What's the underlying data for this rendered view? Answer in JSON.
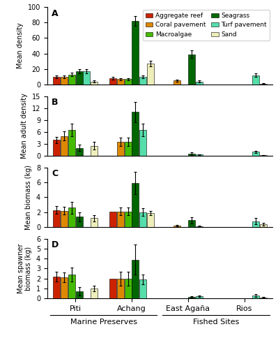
{
  "chart_data": [
    {
      "type": "bar",
      "title": "A",
      "ylabel": "Mean density",
      "categories": [
        "Piti",
        "Achang",
        "East Agaña",
        "Rios"
      ],
      "series": [
        {
          "name": "Aggregate reef",
          "color": "#cc2200",
          "values": [
            10,
            8,
            0,
            0
          ],
          "errors": [
            1.5,
            2,
            0,
            0
          ]
        },
        {
          "name": "Coral pavement",
          "color": "#dd8800",
          "values": [
            10,
            7,
            5,
            0
          ],
          "errors": [
            1.5,
            1.5,
            1,
            0
          ]
        },
        {
          "name": "Macroalgae",
          "color": "#44bb00",
          "values": [
            13,
            7,
            0,
            0
          ],
          "errors": [
            2,
            1.5,
            0,
            0
          ]
        },
        {
          "name": "Seagrass",
          "color": "#006600",
          "values": [
            17,
            82,
            39,
            0
          ],
          "errors": [
            3,
            6,
            5,
            0
          ]
        },
        {
          "name": "Turf pavement",
          "color": "#55ddaa",
          "values": [
            17,
            10,
            4,
            12
          ],
          "errors": [
            2.5,
            2,
            1,
            2
          ]
        },
        {
          "name": "Sand",
          "color": "#eeeebb",
          "values": [
            4,
            27,
            0,
            1
          ],
          "errors": [
            1,
            4,
            0,
            0.5
          ]
        }
      ],
      "ylim": [
        0,
        100
      ],
      "yticks": [
        0,
        20,
        40,
        60,
        80,
        100
      ],
      "legend": "upper right",
      "tick_labels": "y"
    },
    {
      "type": "bar",
      "title": "B",
      "ylabel": "Mean adult density",
      "categories": [
        "Piti",
        "Achang",
        "East Agaña",
        "Rios"
      ],
      "series": [
        {
          "color": "#cc2200",
          "values": [
            4,
            0,
            0,
            0
          ],
          "errors": [
            0.8,
            0,
            0,
            0
          ]
        },
        {
          "color": "#dd8800",
          "values": [
            5,
            3.5,
            0,
            0
          ],
          "errors": [
            1.2,
            1,
            0,
            0
          ]
        },
        {
          "color": "#44bb00",
          "values": [
            6.5,
            3.5,
            0,
            0
          ],
          "errors": [
            1.5,
            1,
            0,
            0
          ]
        },
        {
          "color": "#006600",
          "values": [
            2,
            11,
            0.5,
            0
          ],
          "errors": [
            0.8,
            2.5,
            0.3,
            0
          ]
        },
        {
          "color": "#55ddaa",
          "values": [
            0,
            6.5,
            0.3,
            1
          ],
          "errors": [
            0,
            1.5,
            0.1,
            0.3
          ]
        },
        {
          "color": "#eeeebb",
          "values": [
            2.5,
            0,
            0,
            0.1
          ],
          "errors": [
            1,
            0,
            0,
            0.05
          ]
        }
      ],
      "ylim": [
        0,
        15
      ],
      "yticks": [
        0,
        3,
        6,
        9,
        12,
        15
      ],
      "tick_labels": "y"
    },
    {
      "type": "bar",
      "title": "C",
      "ylabel": "Mean biomass (kg)",
      "categories": [
        "Piti",
        "Achang",
        "East Agaña",
        "Rios"
      ],
      "series": [
        {
          "color": "#cc2200",
          "values": [
            2.3,
            2.1,
            0,
            0
          ],
          "errors": [
            0.5,
            0,
            0,
            0
          ]
        },
        {
          "color": "#dd8800",
          "values": [
            2.2,
            2.1,
            0.2,
            0
          ],
          "errors": [
            0.5,
            0.5,
            0.1,
            0
          ]
        },
        {
          "color": "#44bb00",
          "values": [
            2.6,
            2.1,
            0,
            0
          ],
          "errors": [
            0.8,
            0.5,
            0,
            0
          ]
        },
        {
          "color": "#006600",
          "values": [
            1.4,
            5.9,
            0.9,
            0
          ],
          "errors": [
            0.6,
            1.5,
            0.4,
            0
          ]
        },
        {
          "color": "#55ddaa",
          "values": [
            0,
            2.0,
            0.15,
            0.8
          ],
          "errors": [
            0,
            0.5,
            0.05,
            0.4
          ]
        },
        {
          "color": "#eeeebb",
          "values": [
            1.2,
            1.9,
            0,
            0.4
          ],
          "errors": [
            0.4,
            0.3,
            0,
            0.2
          ]
        }
      ],
      "ylim": [
        0,
        8
      ],
      "yticks": [
        0,
        2,
        4,
        6,
        8
      ],
      "tick_labels": "y"
    },
    {
      "type": "bar",
      "title": "D",
      "ylabel": "Mean spawner\nbiomass (kg)",
      "categories": [
        "Piti",
        "Achang",
        "East Agaña",
        "Rios"
      ],
      "series": [
        {
          "color": "#cc2200",
          "values": [
            2.2,
            2.0,
            0,
            0
          ],
          "errors": [
            0.5,
            0,
            0,
            0
          ]
        },
        {
          "color": "#dd8800",
          "values": [
            2.1,
            2.0,
            0,
            0
          ],
          "errors": [
            0.5,
            0.7,
            0,
            0
          ]
        },
        {
          "color": "#44bb00",
          "values": [
            2.4,
            2.0,
            0,
            0
          ],
          "errors": [
            0.7,
            0.7,
            0,
            0
          ]
        },
        {
          "color": "#006600",
          "values": [
            0.7,
            3.9,
            0.15,
            0
          ],
          "errors": [
            0.4,
            1.5,
            0.1,
            0
          ]
        },
        {
          "color": "#55ddaa",
          "values": [
            0,
            1.9,
            0.2,
            0.3
          ],
          "errors": [
            0,
            0.5,
            0.08,
            0.15
          ]
        },
        {
          "color": "#eeeebb",
          "values": [
            1.0,
            0,
            0,
            0.1
          ],
          "errors": [
            0.3,
            0,
            0,
            0.05
          ]
        }
      ],
      "ylim": [
        0,
        6
      ],
      "yticks": [
        0,
        1,
        2,
        3,
        4,
        5,
        6
      ],
      "annotations": [
        {
          "text": "Marine Preserves",
          "categories": [
            "Piti",
            "Achang"
          ]
        },
        {
          "text": "Fished Sites",
          "categories": [
            "East Agaña",
            "Rios"
          ]
        }
      ]
    }
  ]
}
